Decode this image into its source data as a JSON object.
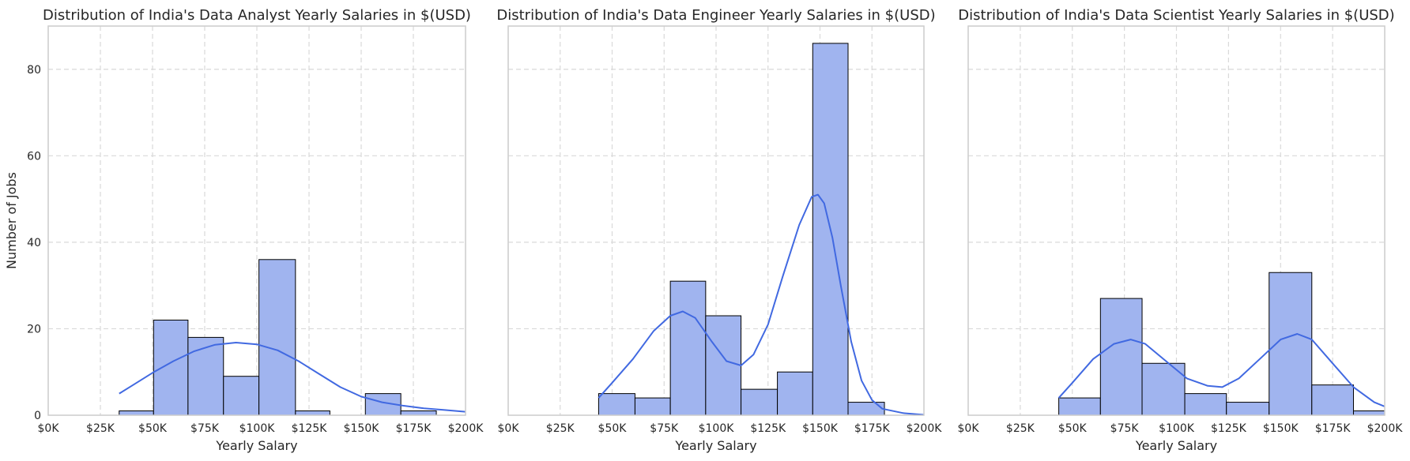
{
  "figure": {
    "ylabel": "Number of Jobs",
    "colors": {
      "bar_fill": "#a0b4ef",
      "bar_edge": "#000000",
      "kde_line": "#4169e1",
      "grid": "#d9d9d9",
      "spine": "#cccccc"
    }
  },
  "chart_data": [
    {
      "type": "bar",
      "subtype": "histogram",
      "title": "Distribution of India's Data Analyst Yearly Salaries in $(USD)",
      "xlabel": "Yearly Salary",
      "ylabel": "Number of Jobs",
      "xlim": [
        0,
        200000
      ],
      "ylim": [
        0,
        90
      ],
      "xticks": [
        0,
        25000,
        50000,
        75000,
        100000,
        125000,
        150000,
        175000,
        200000
      ],
      "xtick_labels": [
        "$0K",
        "$25K",
        "$50K",
        "$75K",
        "$100K",
        "$125K",
        "$150K",
        "$175K",
        "$200K"
      ],
      "yticks": [
        0,
        20,
        40,
        60,
        80
      ],
      "ytick_labels": [
        "0",
        "20",
        "40",
        "60",
        "80"
      ],
      "show_yticks": true,
      "grid": true,
      "bins": [
        [
          34000,
          50500,
          1
        ],
        [
          50500,
          67000,
          22
        ],
        [
          67000,
          84000,
          18
        ],
        [
          84000,
          101000,
          9
        ],
        [
          101000,
          118500,
          36
        ],
        [
          118500,
          135000,
          1
        ],
        [
          135000,
          152000,
          0
        ],
        [
          152000,
          169000,
          5
        ],
        [
          169000,
          186000,
          1
        ]
      ],
      "kde": [
        [
          34000,
          5
        ],
        [
          40000,
          6.8
        ],
        [
          50000,
          9.8
        ],
        [
          60000,
          12.5
        ],
        [
          70000,
          14.8
        ],
        [
          80000,
          16.3
        ],
        [
          90000,
          16.8
        ],
        [
          100000,
          16.4
        ],
        [
          110000,
          15
        ],
        [
          120000,
          12.5
        ],
        [
          130000,
          9.5
        ],
        [
          140000,
          6.5
        ],
        [
          150000,
          4.3
        ],
        [
          160000,
          3
        ],
        [
          170000,
          2.2
        ],
        [
          180000,
          1.6
        ],
        [
          190000,
          1.2
        ],
        [
          200000,
          0.8
        ]
      ]
    },
    {
      "type": "bar",
      "subtype": "histogram",
      "title": "Distribution of India's Data Engineer Yearly Salaries in $(USD)",
      "xlabel": "Yearly Salary",
      "xlim": [
        0,
        200000
      ],
      "ylim": [
        0,
        90
      ],
      "xticks": [
        0,
        25000,
        50000,
        75000,
        100000,
        125000,
        150000,
        175000,
        200000
      ],
      "xtick_labels": [
        "$0K",
        "$25K",
        "$50K",
        "$75K",
        "$100K",
        "$125K",
        "$150K",
        "$175K",
        "$200K"
      ],
      "yticks": [
        0,
        20,
        40,
        60,
        80
      ],
      "show_yticks": false,
      "grid": true,
      "bins": [
        [
          43500,
          61000,
          5
        ],
        [
          61000,
          78000,
          4
        ],
        [
          78000,
          95000,
          31
        ],
        [
          95000,
          112000,
          23
        ],
        [
          112000,
          129500,
          6
        ],
        [
          129500,
          146500,
          10
        ],
        [
          146500,
          163500,
          86
        ],
        [
          163500,
          181000,
          3
        ]
      ],
      "kde": [
        [
          43500,
          4
        ],
        [
          50000,
          7.5
        ],
        [
          60000,
          13
        ],
        [
          70000,
          19.5
        ],
        [
          78000,
          23
        ],
        [
          84000,
          24
        ],
        [
          90000,
          22.5
        ],
        [
          98000,
          17
        ],
        [
          105000,
          12.5
        ],
        [
          112000,
          11.5
        ],
        [
          118000,
          14
        ],
        [
          125000,
          21
        ],
        [
          132000,
          32
        ],
        [
          140000,
          44
        ],
        [
          146000,
          50.5
        ],
        [
          149000,
          51
        ],
        [
          152000,
          49
        ],
        [
          156000,
          41
        ],
        [
          160000,
          30
        ],
        [
          165000,
          17
        ],
        [
          170000,
          8
        ],
        [
          175000,
          3.5
        ],
        [
          180000,
          1.5
        ],
        [
          190000,
          0.5
        ],
        [
          200000,
          0.1
        ]
      ]
    },
    {
      "type": "bar",
      "subtype": "histogram",
      "title": "Distribution of India's Data Scientist Yearly Salaries in $(USD)",
      "xlabel": "Yearly Salary",
      "xlim": [
        0,
        200000
      ],
      "ylim": [
        0,
        90
      ],
      "xticks": [
        0,
        25000,
        50000,
        75000,
        100000,
        125000,
        150000,
        175000,
        200000
      ],
      "xtick_labels": [
        "$0K",
        "$25K",
        "$50K",
        "$75K",
        "$100K",
        "$125K",
        "$150K",
        "$175K",
        "$200K"
      ],
      "yticks": [
        0,
        20,
        40,
        60,
        80
      ],
      "show_yticks": false,
      "grid": true,
      "bins": [
        [
          43500,
          63500,
          4
        ],
        [
          63500,
          83500,
          27
        ],
        [
          83500,
          104000,
          12
        ],
        [
          104000,
          124000,
          5
        ],
        [
          124000,
          144500,
          3
        ],
        [
          144500,
          165000,
          33
        ],
        [
          165000,
          185000,
          7
        ],
        [
          185000,
          205500,
          1
        ]
      ],
      "kde": [
        [
          43500,
          4
        ],
        [
          50000,
          7.5
        ],
        [
          60000,
          13
        ],
        [
          70000,
          16.5
        ],
        [
          78000,
          17.5
        ],
        [
          85000,
          16.5
        ],
        [
          95000,
          12.5
        ],
        [
          105000,
          8.5
        ],
        [
          115000,
          6.8
        ],
        [
          122000,
          6.5
        ],
        [
          130000,
          8.5
        ],
        [
          140000,
          13
        ],
        [
          150000,
          17.5
        ],
        [
          158000,
          18.8
        ],
        [
          165000,
          17.5
        ],
        [
          175000,
          12
        ],
        [
          185000,
          6.5
        ],
        [
          195000,
          3
        ],
        [
          200000,
          2
        ]
      ]
    }
  ]
}
